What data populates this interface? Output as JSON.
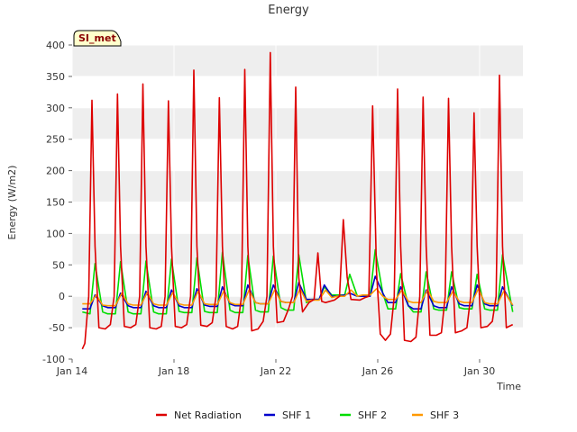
{
  "chart_data": {
    "type": "line",
    "title": "Energy",
    "xlabel": "Time",
    "ylabel": "Energy (W/m2)",
    "badge": "SI_met",
    "xlim": [
      14,
      31.7
    ],
    "ylim": [
      -100,
      400
    ],
    "yticks": [
      -100,
      -50,
      0,
      50,
      100,
      150,
      200,
      250,
      300,
      350,
      400
    ],
    "xticks": [
      {
        "value": 14,
        "label": "Jan 14"
      },
      {
        "value": 18,
        "label": "Jan 18"
      },
      {
        "value": 22,
        "label": "Jan 22"
      },
      {
        "value": 26,
        "label": "Jan 26"
      },
      {
        "value": 30,
        "label": "Jan 30"
      }
    ],
    "grid": true,
    "legend": "bottom",
    "series": [
      {
        "name": "Net Radiation",
        "color": "#dd0000",
        "x": [
          14.4,
          14.5,
          14.65,
          14.78,
          14.9,
          15.05,
          15.3,
          15.5,
          15.65,
          15.78,
          15.9,
          16.05,
          16.3,
          16.5,
          16.65,
          16.78,
          16.9,
          17.05,
          17.3,
          17.5,
          17.65,
          17.78,
          17.9,
          18.05,
          18.3,
          18.5,
          18.65,
          18.78,
          18.9,
          19.05,
          19.3,
          19.5,
          19.65,
          19.78,
          19.9,
          20.05,
          20.3,
          20.5,
          20.65,
          20.78,
          20.9,
          21.05,
          21.3,
          21.5,
          21.65,
          21.78,
          21.9,
          22.05,
          22.3,
          22.5,
          22.65,
          22.78,
          22.9,
          23.05,
          23.3,
          23.5,
          23.65,
          23.8,
          23.95,
          24.3,
          24.5,
          24.65,
          24.8,
          24.95,
          25.3,
          25.5,
          25.65,
          25.8,
          25.95,
          26.1,
          26.3,
          26.5,
          26.65,
          26.78,
          26.9,
          27.05,
          27.3,
          27.5,
          27.65,
          27.78,
          27.9,
          28.05,
          28.3,
          28.5,
          28.65,
          28.78,
          28.9,
          29.05,
          29.3,
          29.5,
          29.65,
          29.78,
          29.9,
          30.05,
          30.3,
          30.5,
          30.65,
          30.78,
          30.9,
          31.05,
          31.3
        ],
        "values": [
          -84,
          -75,
          0,
          312,
          80,
          -50,
          -52,
          -45,
          0,
          322,
          80,
          -48,
          -50,
          -45,
          0,
          338,
          80,
          -50,
          -52,
          -48,
          0,
          311,
          80,
          -48,
          -50,
          -45,
          0,
          360,
          80,
          -46,
          -48,
          -42,
          0,
          316,
          80,
          -48,
          -52,
          -48,
          0,
          361,
          80,
          -55,
          -52,
          -40,
          0,
          388,
          80,
          -42,
          -40,
          -20,
          0,
          333,
          30,
          -25,
          -10,
          -5,
          69,
          -8,
          -10,
          -6,
          0,
          122,
          30,
          -5,
          -6,
          -2,
          0,
          303,
          40,
          -60,
          -70,
          -60,
          0,
          330,
          80,
          -70,
          -72,
          -65,
          0,
          317,
          80,
          -62,
          -62,
          -58,
          0,
          315,
          80,
          -58,
          -55,
          -50,
          0,
          292,
          80,
          -50,
          -48,
          -40,
          0,
          352,
          80,
          -50,
          -45
        ]
      },
      {
        "name": "SHF 1",
        "color": "#0000cc",
        "x": [
          14.4,
          14.7,
          14.9,
          15.2,
          15.4,
          15.7,
          15.9,
          16.2,
          16.4,
          16.7,
          16.9,
          17.2,
          17.4,
          17.7,
          17.9,
          18.2,
          18.4,
          18.7,
          18.9,
          19.2,
          19.4,
          19.7,
          19.9,
          20.2,
          20.4,
          20.7,
          20.9,
          21.2,
          21.4,
          21.7,
          21.9,
          22.2,
          22.4,
          22.7,
          22.9,
          23.2,
          23.4,
          23.7,
          23.9,
          24.2,
          24.4,
          24.7,
          24.9,
          25.2,
          25.4,
          25.7,
          25.9,
          26.2,
          26.4,
          26.7,
          26.9,
          27.2,
          27.4,
          27.7,
          27.9,
          28.2,
          28.4,
          28.7,
          28.9,
          29.2,
          29.4,
          29.7,
          29.9,
          30.2,
          30.4,
          30.7,
          30.9,
          31.3
        ],
        "values": [
          -20,
          -20,
          2,
          -15,
          -18,
          -18,
          5,
          -15,
          -18,
          -18,
          8,
          -15,
          -18,
          -18,
          10,
          -15,
          -18,
          -18,
          12,
          -14,
          -16,
          -16,
          15,
          -12,
          -15,
          -15,
          18,
          -10,
          -12,
          -12,
          18,
          -8,
          -10,
          -10,
          22,
          -5,
          -5,
          -5,
          18,
          0,
          0,
          2,
          5,
          0,
          0,
          0,
          32,
          5,
          -10,
          -10,
          15,
          -15,
          -20,
          -20,
          10,
          -15,
          -18,
          -18,
          15,
          -12,
          -15,
          -15,
          18,
          -12,
          -15,
          -15,
          15,
          -15
        ]
      },
      {
        "name": "SHF 2",
        "color": "#00dd00",
        "x": [
          14.4,
          14.7,
          14.9,
          15.2,
          15.4,
          15.7,
          15.9,
          16.2,
          16.4,
          16.7,
          16.9,
          17.2,
          17.4,
          17.7,
          17.9,
          18.2,
          18.4,
          18.7,
          18.9,
          19.2,
          19.4,
          19.7,
          19.9,
          20.2,
          20.4,
          20.7,
          20.9,
          21.2,
          21.4,
          21.7,
          21.9,
          22.2,
          22.4,
          22.7,
          22.9,
          23.2,
          23.4,
          23.7,
          23.9,
          24.2,
          24.4,
          24.7,
          24.9,
          25.2,
          25.4,
          25.7,
          25.9,
          26.2,
          26.4,
          26.7,
          26.9,
          27.2,
          27.4,
          27.7,
          27.9,
          28.2,
          28.4,
          28.7,
          28.9,
          29.2,
          29.4,
          29.7,
          29.9,
          30.2,
          30.4,
          30.7,
          30.9,
          31.3
        ],
        "values": [
          -25,
          -28,
          52,
          -25,
          -28,
          -28,
          55,
          -25,
          -28,
          -28,
          56,
          -25,
          -28,
          -28,
          59,
          -24,
          -26,
          -26,
          61,
          -24,
          -26,
          -26,
          70,
          -22,
          -26,
          -26,
          65,
          -22,
          -25,
          -25,
          64,
          -18,
          -22,
          -22,
          66,
          -10,
          -5,
          -5,
          15,
          2,
          2,
          2,
          35,
          0,
          0,
          0,
          74,
          5,
          -20,
          -20,
          36,
          -15,
          -25,
          -25,
          39,
          -20,
          -22,
          -22,
          39,
          -18,
          -20,
          -20,
          35,
          -20,
          -22,
          -22,
          66,
          -25
        ]
      },
      {
        "name": "SHF 3",
        "color": "#ff9900",
        "x": [
          14.4,
          14.7,
          14.95,
          15.2,
          15.4,
          15.7,
          15.95,
          16.2,
          16.4,
          16.7,
          16.95,
          17.2,
          17.4,
          17.7,
          17.95,
          18.2,
          18.4,
          18.7,
          18.95,
          19.2,
          19.4,
          19.7,
          19.95,
          20.2,
          20.4,
          20.7,
          20.95,
          21.2,
          21.4,
          21.7,
          21.95,
          22.2,
          22.4,
          22.7,
          22.95,
          23.2,
          23.4,
          23.7,
          23.95,
          24.2,
          24.4,
          24.7,
          24.95,
          25.2,
          25.4,
          25.7,
          25.95,
          26.2,
          26.4,
          26.7,
          26.95,
          27.2,
          27.4,
          27.7,
          27.95,
          28.2,
          28.4,
          28.7,
          28.95,
          29.2,
          29.4,
          29.7,
          29.95,
          30.2,
          30.4,
          30.7,
          30.95,
          31.3
        ],
        "values": [
          -12,
          -12,
          2,
          -14,
          -15,
          -15,
          5,
          -12,
          -14,
          -14,
          6,
          -12,
          -14,
          -14,
          6,
          -12,
          -14,
          -14,
          8,
          -12,
          -13,
          -13,
          8,
          -10,
          -13,
          -13,
          10,
          -10,
          -12,
          -12,
          10,
          -8,
          -10,
          -10,
          12,
          -8,
          -6,
          -6,
          10,
          -2,
          0,
          0,
          10,
          0,
          2,
          2,
          12,
          0,
          -5,
          -5,
          10,
          -8,
          -10,
          -10,
          10,
          -8,
          -10,
          -10,
          8,
          -8,
          -10,
          -10,
          12,
          -10,
          -12,
          -12,
          8,
          -14
        ]
      }
    ]
  }
}
